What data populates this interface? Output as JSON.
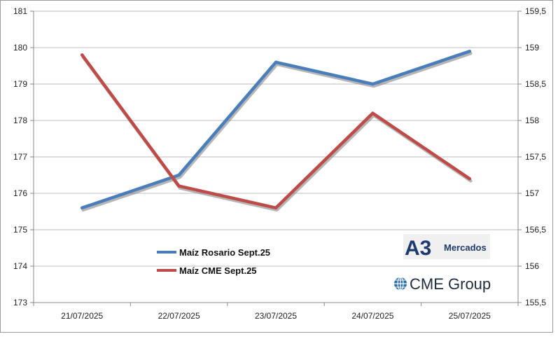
{
  "chart_data": {
    "type": "line",
    "categories": [
      "21/07/2025",
      "22/07/2025",
      "23/07/2025",
      "24/07/2025",
      "25/07/2025"
    ],
    "series": [
      {
        "name": "Maíz Rosario Sept.25",
        "axis": "left",
        "color": "#4a7ebb",
        "values": [
          175.6,
          176.5,
          179.6,
          179.0,
          179.9
        ]
      },
      {
        "name": "Maíz CME Sept.25",
        "axis": "right",
        "color": "#be4b48",
        "values": [
          158.9,
          157.1,
          156.8,
          158.1,
          157.2
        ]
      }
    ],
    "y_left": {
      "min": 173,
      "max": 181,
      "ticks": [
        "173",
        "174",
        "175",
        "176",
        "177",
        "178",
        "179",
        "180",
        "181"
      ]
    },
    "y_right": {
      "min": 155.5,
      "max": 159.5,
      "ticks": [
        "155,5",
        "156",
        "156,5",
        "157",
        "157,5",
        "158",
        "158,5",
        "159",
        "159,5"
      ]
    },
    "grid": "horizontal",
    "legend_position": "bottom-left inside plot",
    "logos": {
      "a3_mark": "A3",
      "a3_text": "Mercados",
      "cme_text": "CME Group",
      "cme_icon": "globe-icon"
    }
  }
}
